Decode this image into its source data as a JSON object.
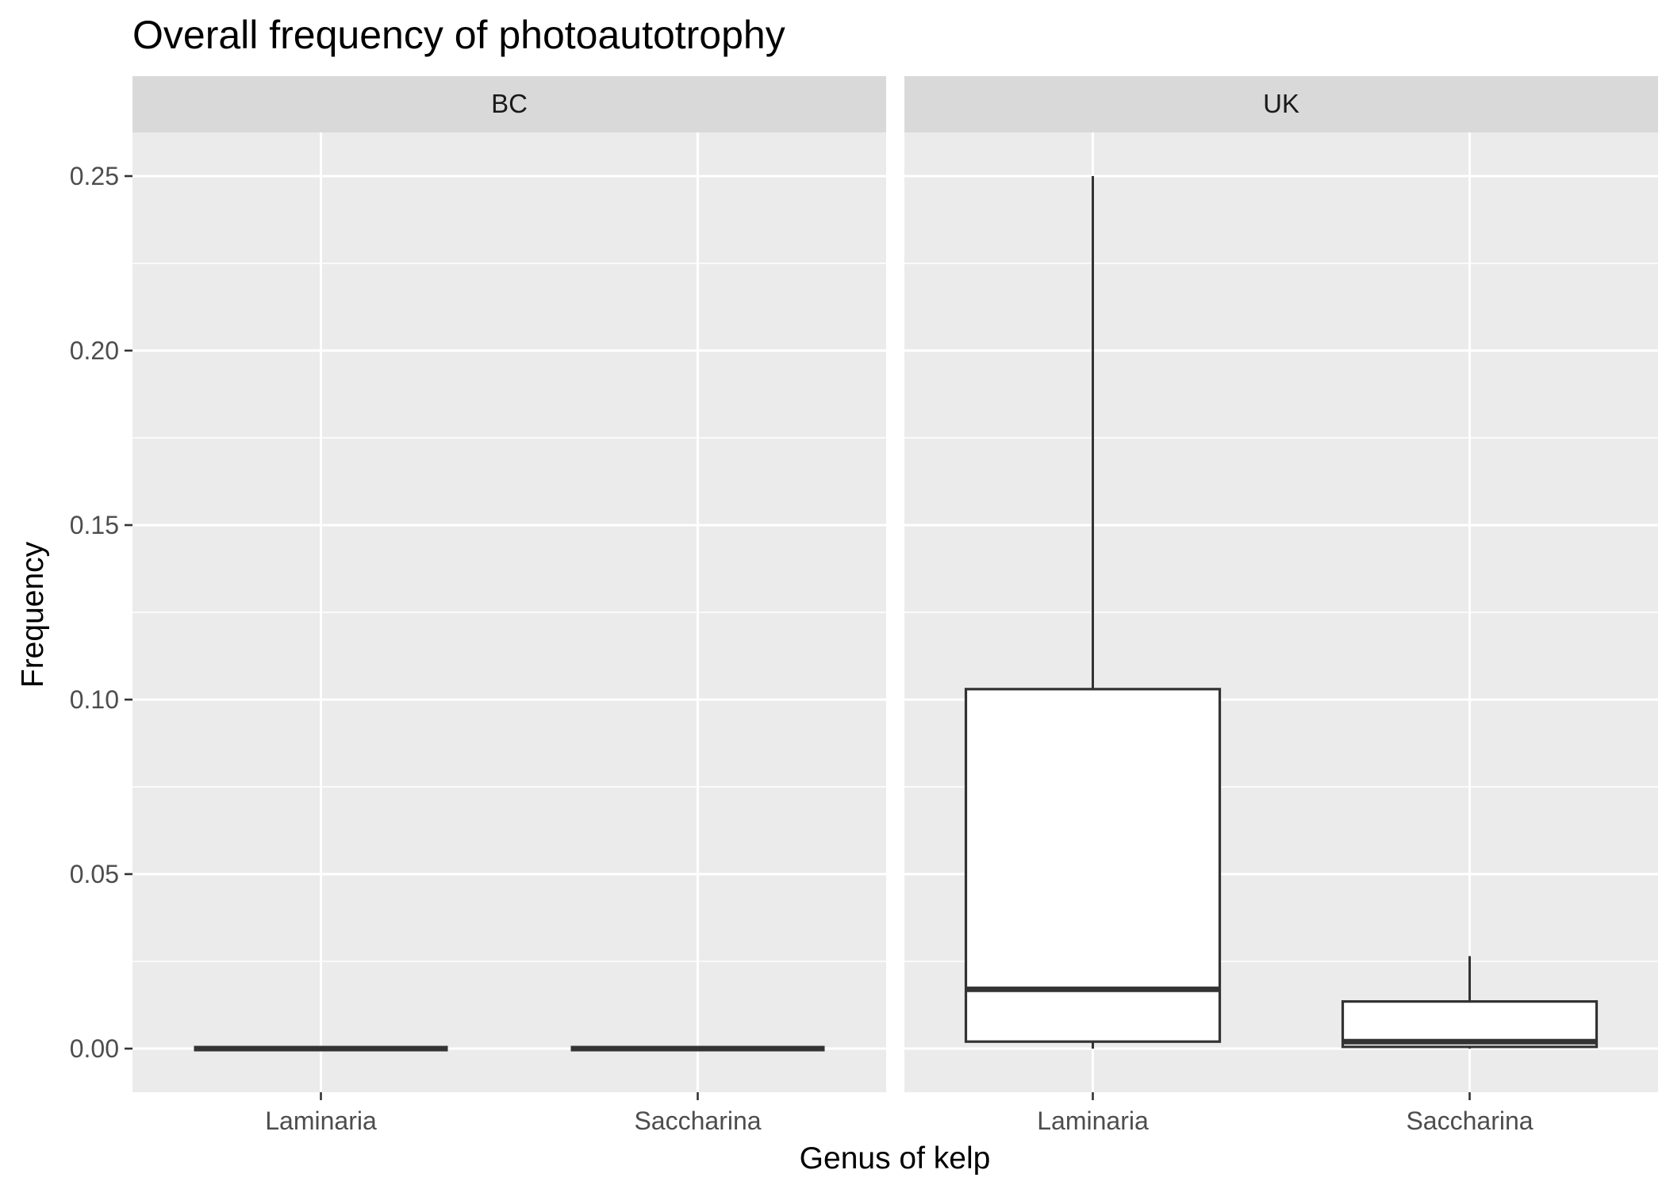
{
  "chart_data": {
    "type": "box",
    "title": "Overall frequency of photoautotrophy",
    "xlabel": "Genus of kelp",
    "ylabel": "Frequency",
    "ylim": [
      -0.0125,
      0.2625
    ],
    "yticks": [
      0.0,
      0.05,
      0.1,
      0.15,
      0.2,
      0.25
    ],
    "ytick_labels": [
      "0.00",
      "0.05",
      "0.10",
      "0.15",
      "0.20",
      "0.25"
    ],
    "grid": true,
    "categories": [
      "Laminaria",
      "Saccharina"
    ],
    "colors": {
      "panel_bg": "#ebebeb",
      "strip_bg": "#d9d9d9",
      "grid": "#ffffff",
      "box_fill": "#ffffff",
      "box_line": "#333333"
    },
    "facets": [
      {
        "name": "BC",
        "boxes": [
          {
            "category": "Laminaria",
            "whisker_low": 0.0,
            "q1": 0.0,
            "median": 0.0,
            "q3": 0.0,
            "whisker_high": 0.0
          },
          {
            "category": "Saccharina",
            "whisker_low": 0.0,
            "q1": 0.0,
            "median": 0.0,
            "q3": 0.0,
            "whisker_high": 0.0
          }
        ]
      },
      {
        "name": "UK",
        "boxes": [
          {
            "category": "Laminaria",
            "whisker_low": 0.0,
            "q1": 0.002,
            "median": 0.017,
            "q3": 0.103,
            "whisker_high": 0.25
          },
          {
            "category": "Saccharina",
            "whisker_low": 0.0,
            "q1": 0.0005,
            "median": 0.002,
            "q3": 0.0135,
            "whisker_high": 0.0265
          }
        ]
      }
    ]
  }
}
